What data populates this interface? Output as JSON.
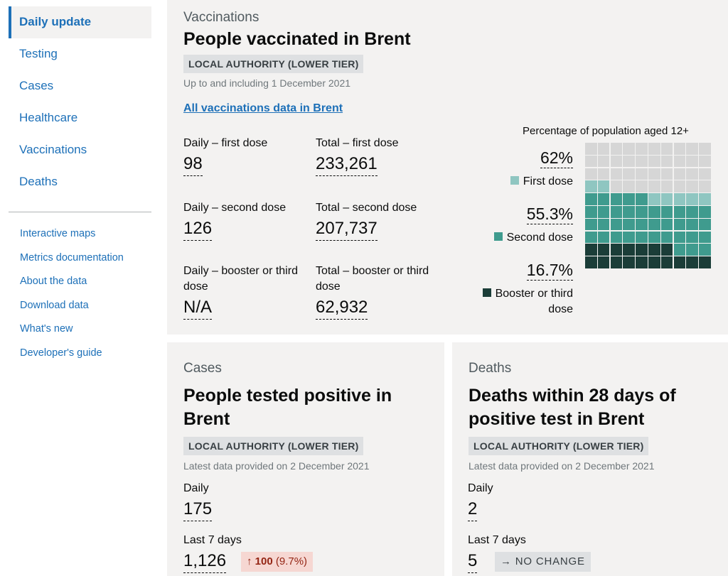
{
  "sidebar": {
    "primary": [
      {
        "label": "Daily update",
        "active": true
      },
      {
        "label": "Testing"
      },
      {
        "label": "Cases"
      },
      {
        "label": "Healthcare"
      },
      {
        "label": "Vaccinations"
      },
      {
        "label": "Deaths"
      }
    ],
    "secondary": [
      {
        "label": "Interactive maps"
      },
      {
        "label": "Metrics documentation"
      },
      {
        "label": "About the data"
      },
      {
        "label": "Download data"
      },
      {
        "label": "What's new"
      },
      {
        "label": "Developer's guide"
      }
    ]
  },
  "vaccinations": {
    "category": "Vaccinations",
    "title": "People vaccinated in Brent",
    "tag": "LOCAL AUTHORITY (LOWER TIER)",
    "date_note": "Up to and including 1 December 2021",
    "link": "All vaccinations data in Brent",
    "metrics": {
      "daily_first_label": "Daily – first dose",
      "daily_first_value": "98",
      "total_first_label": "Total – first dose",
      "total_first_value": "233,261",
      "daily_second_label": "Daily – second dose",
      "daily_second_value": "126",
      "total_second_label": "Total – second dose",
      "total_second_value": "207,737",
      "daily_booster_label_1": "Daily – booster or third",
      "daily_booster_label_2": "dose",
      "daily_booster_value": "N/A",
      "total_booster_label_1": "Total – booster or third",
      "total_booster_label_2": "dose",
      "total_booster_value": "62,932"
    },
    "waffle": {
      "title": "Percentage of population aged 12+",
      "first_pct": "62%",
      "first_label": "First dose",
      "second_pct": "55.3%",
      "second_label": "Second dose",
      "booster_pct": "16.7%",
      "booster_label_1": "Booster or third",
      "booster_label_2": "dose",
      "colors": {
        "empty": "#d6d6d6",
        "first": "#8fc6c1",
        "second": "#3f9b8e",
        "booster": "#1b3d38"
      }
    }
  },
  "chart_data": {
    "type": "waffle",
    "title": "Percentage of population aged 12+",
    "series": [
      {
        "name": "First dose",
        "value": 62
      },
      {
        "name": "Second dose",
        "value": 55.3
      },
      {
        "name": "Booster or third dose",
        "value": 16.7
      }
    ],
    "total": 100
  },
  "cases": {
    "category": "Cases",
    "title_1": "People tested positive in",
    "title_2": "Brent",
    "tag": "LOCAL AUTHORITY (LOWER TIER)",
    "date_note": "Latest data provided on 2 December 2021",
    "daily_label": "Daily",
    "daily_value": "175",
    "week_label": "Last 7 days",
    "week_value": "1,126",
    "change_arrow": "↑",
    "change_value": "100",
    "change_pct": "(9.7%)"
  },
  "deaths": {
    "category": "Deaths",
    "title_1": "Deaths within 28 days of",
    "title_2": "positive test in Brent",
    "tag": "LOCAL AUTHORITY (LOWER TIER)",
    "date_note": "Latest data provided on 2 December 2021",
    "daily_label": "Daily",
    "daily_value": "2",
    "week_label": "Last 7 days",
    "week_value": "5",
    "change_arrow": "→",
    "change_text": "NO CHANGE"
  }
}
